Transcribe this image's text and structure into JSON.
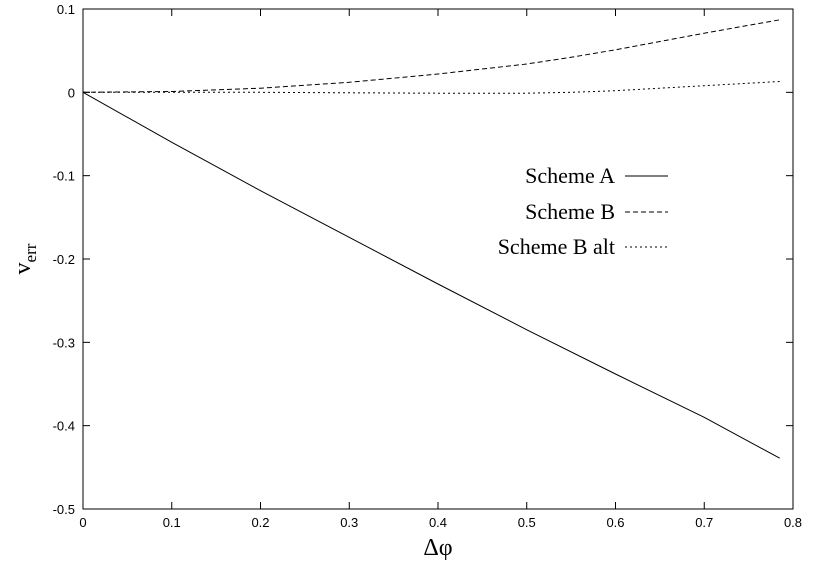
{
  "chart_data": {
    "type": "line",
    "title": "",
    "xlabel": "Δφ",
    "ylabel_main": "v",
    "ylabel_sub": "err",
    "xlim": [
      0,
      0.8
    ],
    "ylim": [
      -0.5,
      0.1
    ],
    "x_ticks": [
      0,
      0.1,
      0.2,
      0.3,
      0.4,
      0.5,
      0.6,
      0.7,
      0.8
    ],
    "x_tick_labels": [
      "0",
      "0.1",
      "0.2",
      "0.3",
      "0.4",
      "0.5",
      "0.6",
      "0.7",
      "0.8"
    ],
    "y_ticks": [
      0.1,
      0,
      -0.1,
      -0.2,
      -0.3,
      -0.4,
      -0.5
    ],
    "y_tick_labels": [
      "0.1",
      "0",
      "-0.1",
      "-0.2",
      "-0.3",
      "-0.4",
      "-0.5"
    ],
    "grid": false,
    "legend_position": "center-right",
    "series": [
      {
        "name": "Scheme A",
        "style": "solid",
        "x": [
          0,
          0.1,
          0.2,
          0.3,
          0.4,
          0.5,
          0.6,
          0.7,
          0.785
        ],
        "y": [
          0,
          -0.06,
          -0.118,
          -0.174,
          -0.23,
          -0.285,
          -0.338,
          -0.39,
          -0.439
        ]
      },
      {
        "name": "Scheme B",
        "style": "dashed",
        "x": [
          0,
          0.1,
          0.2,
          0.3,
          0.4,
          0.5,
          0.55,
          0.6,
          0.65,
          0.7,
          0.785
        ],
        "y": [
          0,
          0.001,
          0.005,
          0.012,
          0.022,
          0.034,
          0.042,
          0.051,
          0.061,
          0.071,
          0.087
        ]
      },
      {
        "name": "Scheme B alt",
        "style": "dotted",
        "x": [
          0,
          0.1,
          0.2,
          0.3,
          0.4,
          0.5,
          0.55,
          0.6,
          0.65,
          0.7,
          0.785
        ],
        "y": [
          0,
          0,
          0,
          -0.0005,
          -0.001,
          -0.001,
          0.0,
          0.002,
          0.005,
          0.008,
          0.013
        ]
      }
    ]
  }
}
